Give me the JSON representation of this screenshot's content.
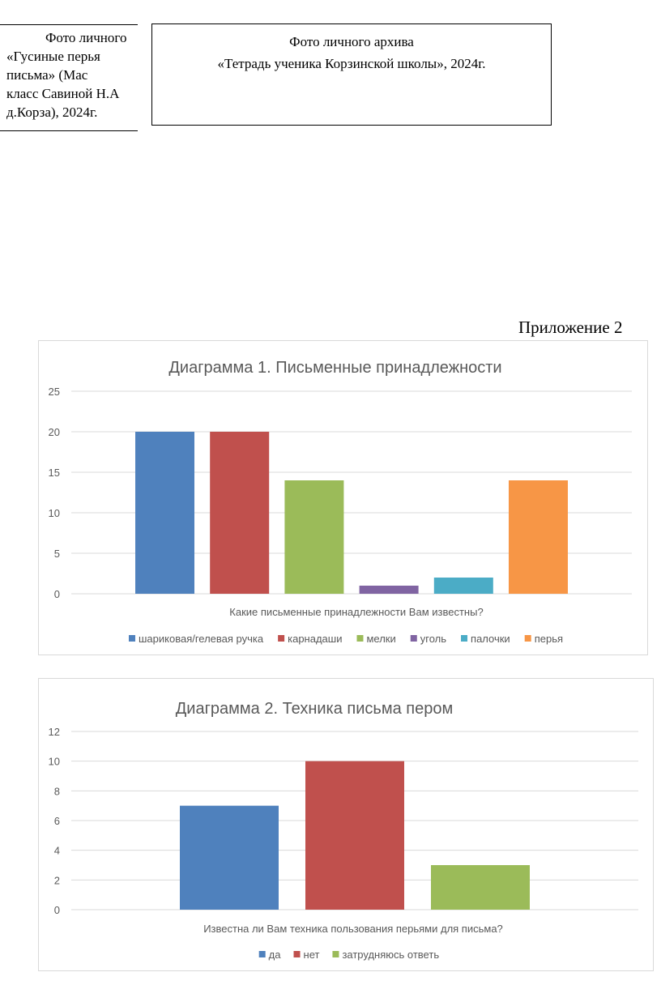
{
  "left_caption": {
    "lines": [
      "Фото личного",
      "«Гусиные перья",
      "письма» (Мас",
      "класс Савиной Н.А",
      "д.Корза), 2024г."
    ]
  },
  "right_caption": {
    "line1": "Фото личного архива",
    "line2": "«Тетрадь ученика Корзинской школы», 2024г."
  },
  "appendix_label": "Приложение 2",
  "chart_data": [
    {
      "type": "bar",
      "title": "Диаграмма 1. Письменные принадлежности",
      "xlabel": "Какие письменные принадлежности Вам известны?",
      "ylabel": "",
      "ylim": [
        0,
        25
      ],
      "yticks": [
        "0",
        "5",
        "10",
        "15",
        "20",
        "25"
      ],
      "grid": true,
      "legend": "bottom",
      "series": [
        {
          "name": "шариковая/гелевая ручка",
          "values": [
            20
          ],
          "color": "#4f81bd"
        },
        {
          "name": "карнадаши",
          "values": [
            20
          ],
          "color": "#c0504d"
        },
        {
          "name": "мелки",
          "values": [
            14
          ],
          "color": "#9bbb59"
        },
        {
          "name": "уголь",
          "values": [
            1
          ],
          "color": "#8064a2"
        },
        {
          "name": "палочки",
          "values": [
            2
          ],
          "color": "#4bacc6"
        },
        {
          "name": "перья",
          "values": [
            14
          ],
          "color": "#f79646"
        }
      ]
    },
    {
      "type": "bar",
      "title": "Диаграмма 2. Техника письма пером",
      "xlabel": "Известна ли Вам техника пользования перьями для письма?",
      "ylabel": "",
      "ylim": [
        0,
        12
      ],
      "yticks": [
        "0",
        "2",
        "4",
        "6",
        "8",
        "10",
        "12"
      ],
      "grid": true,
      "legend": "bottom",
      "series": [
        {
          "name": "да",
          "values": [
            7
          ],
          "color": "#4f81bd"
        },
        {
          "name": "нет",
          "values": [
            10
          ],
          "color": "#c0504d"
        },
        {
          "name": "затрудняюсь ответь",
          "values": [
            3
          ],
          "color": "#9bbb59"
        }
      ]
    }
  ]
}
